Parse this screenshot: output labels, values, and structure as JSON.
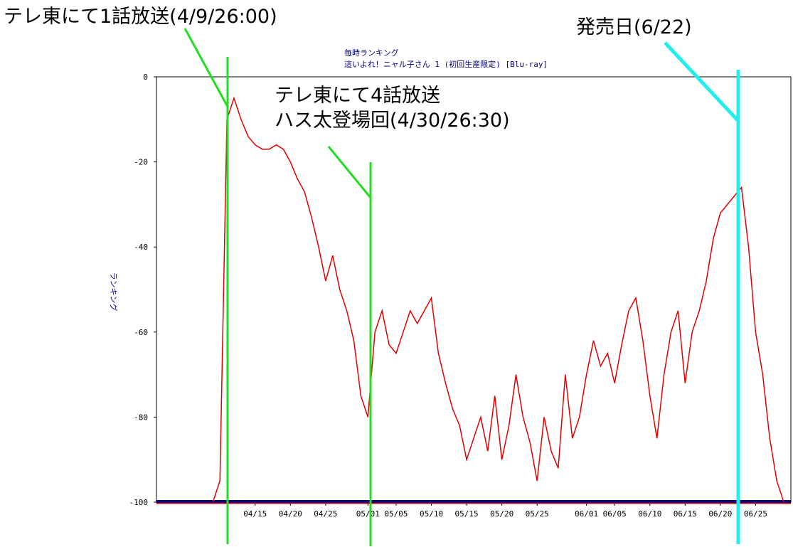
{
  "chart_data": {
    "type": "line",
    "title": "毎時ランキング",
    "subtitle": "這いよれ！ニャル子さん 1 (初回生産限定) [Blu-ray]",
    "y_label": "ランキング",
    "annotations": [
      "テレ東にて1話放送(4/9/26:00)",
      "テレ東にて4話放送",
      "ハス太登場回(4/30/26:30)",
      "発売日(6/22)"
    ],
    "x": [
      "04/09",
      "04/10",
      "04/11",
      "04/12",
      "04/13",
      "04/14",
      "04/15",
      "04/16",
      "04/17",
      "04/18",
      "04/19",
      "04/20",
      "04/21",
      "04/22",
      "04/23",
      "04/24",
      "04/25",
      "04/26",
      "04/27",
      "04/28",
      "04/29",
      "04/30",
      "05/01",
      "05/02",
      "05/03",
      "05/04",
      "05/05",
      "05/06",
      "05/07",
      "05/08",
      "05/09",
      "05/10",
      "05/11",
      "05/12",
      "05/13",
      "05/14",
      "05/15",
      "05/16",
      "05/17",
      "05/18",
      "05/19",
      "05/20",
      "05/21",
      "05/22",
      "05/23",
      "05/24",
      "05/25",
      "05/26",
      "05/27",
      "05/28",
      "05/29",
      "05/30",
      "05/31",
      "06/01",
      "06/02",
      "06/03",
      "06/04",
      "06/05",
      "06/06",
      "06/07",
      "06/08",
      "06/09",
      "06/10",
      "06/11",
      "06/12",
      "06/13",
      "06/14",
      "06/15",
      "06/16",
      "06/17",
      "06/18",
      "06/19",
      "06/20",
      "06/21",
      "06/22",
      "06/23",
      "06/24",
      "06/25",
      "06/26",
      "06/27",
      "06/28",
      "06/29"
    ],
    "values": [
      -100,
      -95,
      -10,
      -5,
      -10,
      -14,
      -16,
      -17,
      -17,
      -16,
      -17,
      -20,
      -24,
      -27,
      -33,
      -40,
      -48,
      -42,
      -50,
      -55,
      -62,
      -75,
      -80,
      -60,
      -55,
      -63,
      -65,
      -60,
      -55,
      -58,
      -55,
      -52,
      -65,
      -72,
      -78,
      -82,
      -90,
      -85,
      -80,
      -88,
      -75,
      -90,
      -82,
      -70,
      -80,
      -86,
      -95,
      -80,
      -88,
      -92,
      -70,
      -85,
      -80,
      -70,
      -62,
      -68,
      -65,
      -72,
      -63,
      -55,
      -52,
      -62,
      -75,
      -85,
      -70,
      -60,
      -55,
      -72,
      -60,
      -55,
      -48,
      -38,
      -32,
      -30,
      -28,
      -26,
      -40,
      -60,
      -70,
      -85,
      -95,
      -100
    ],
    "color": "#e00000",
    "xlim": [
      "04/01",
      "06/30"
    ],
    "xticks": [
      "04/15",
      "04/20",
      "04/25",
      "05/01",
      "05/05",
      "05/10",
      "05/15",
      "05/20",
      "05/25",
      "06/01",
      "06/05",
      "06/10",
      "06/15",
      "06/20",
      "06/25"
    ],
    "ylim": [
      -100,
      0
    ],
    "yticks": [
      0,
      -20,
      -40,
      -60,
      -80,
      -100
    ]
  }
}
